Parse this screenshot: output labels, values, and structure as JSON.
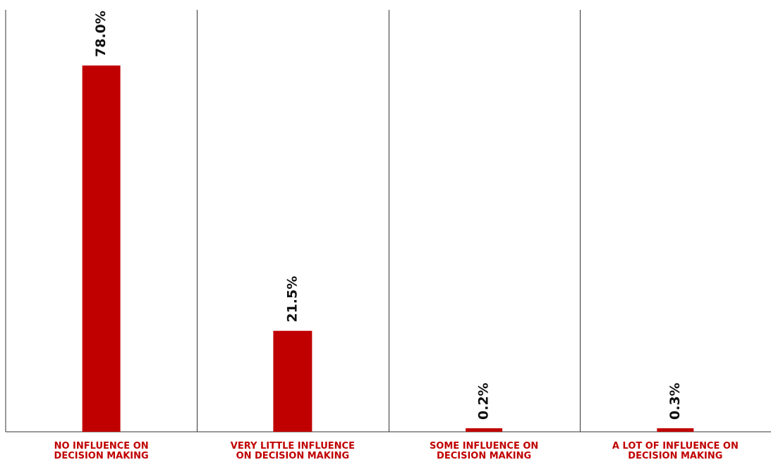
{
  "chart_data": {
    "type": "bar",
    "categories": [
      [
        "NO INFLUENCE ON",
        "DECISION MAKING"
      ],
      [
        "VERY LITTLE INFLUENCE",
        "ON DECISION MAKING"
      ],
      [
        "SOME INFLUENCE ON",
        "DECISION MAKING"
      ],
      [
        "A LOT OF INFLUENCE ON",
        "DECISION MAKING"
      ]
    ],
    "values": [
      78.0,
      21.5,
      0.2,
      0.3
    ],
    "value_labels": [
      "78.0%",
      "21.5%",
      "0.2%",
      "0.3%"
    ],
    "ylim": [
      0,
      100
    ],
    "grid": false,
    "legend": "none"
  },
  "colors": {
    "bar": "#c00000",
    "label": "#c00000",
    "value_label": "#111111",
    "axis": "#333333"
  }
}
